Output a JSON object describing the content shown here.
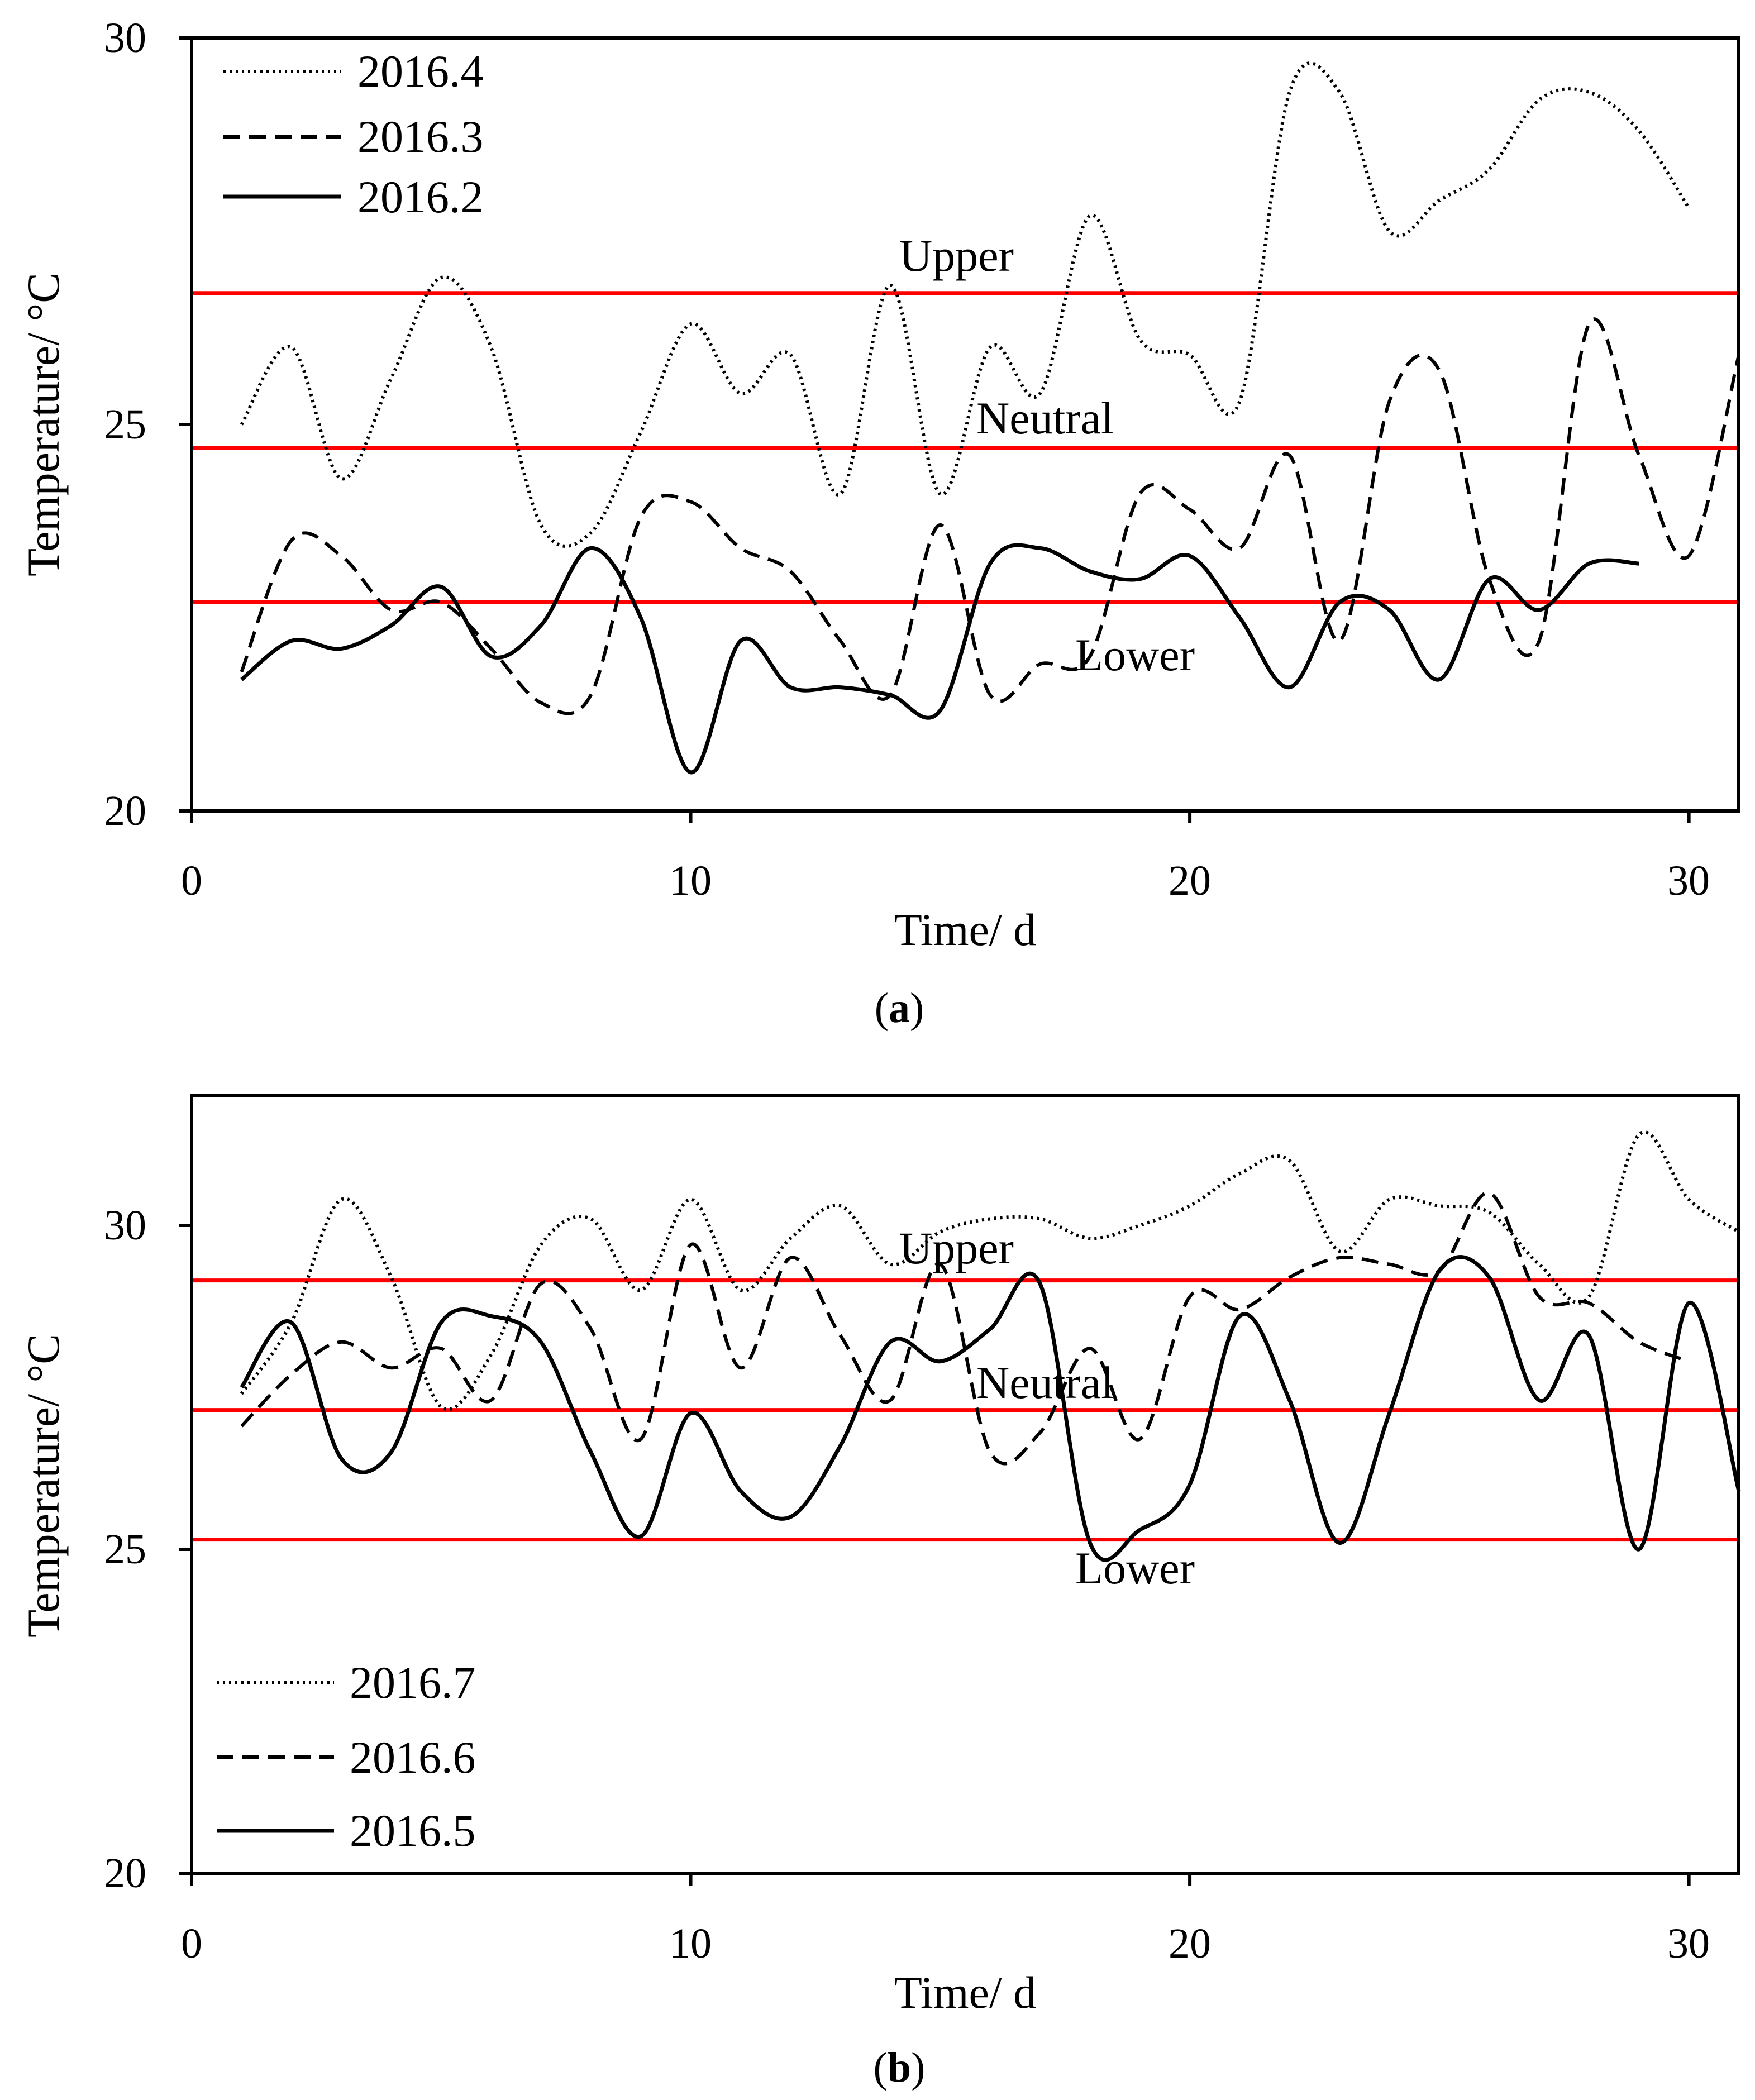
{
  "colors": {
    "line": "#000000",
    "comfort": "#ff0000",
    "background": "#ffffff"
  },
  "chart_data": [
    {
      "panel_id": "a",
      "caption": {
        "open": "(",
        "letter": "a",
        "close": ")"
      },
      "type": "line",
      "xlabel": "Time/ d",
      "ylabel": "Temperature/ °C",
      "xlim": [
        0,
        31
      ],
      "ylim": [
        20,
        30
      ],
      "xticks": [
        0,
        10,
        20,
        30
      ],
      "yticks": [
        20,
        25,
        30
      ],
      "legend_position": "top-left",
      "comfort_lines": [
        {
          "name": "Upper",
          "value": 26.7
        },
        {
          "name": "Neutral",
          "value": 24.7
        },
        {
          "name": "Lower",
          "value": 22.7
        }
      ],
      "series": [
        {
          "name": "2016.4",
          "style": "dotted",
          "x": [
            1,
            2,
            3,
            4,
            5,
            6,
            7,
            8,
            9,
            10,
            11,
            12,
            13,
            14,
            15,
            16,
            17,
            18,
            19,
            20,
            21,
            22,
            23,
            24,
            25,
            26,
            27,
            28,
            29,
            30
          ],
          "values": [
            25.0,
            26.0,
            24.3,
            25.6,
            26.9,
            26.0,
            23.7,
            23.6,
            24.9,
            26.3,
            25.4,
            25.9,
            24.1,
            26.8,
            24.1,
            26.0,
            25.4,
            27.7,
            26.1,
            25.9,
            25.3,
            29.3,
            29.3,
            27.5,
            27.9,
            28.3,
            29.2,
            29.3,
            28.8,
            27.8
          ]
        },
        {
          "name": "2016.3",
          "style": "dashed",
          "x": [
            1,
            2,
            3,
            4,
            5,
            6,
            7,
            8,
            9,
            10,
            11,
            12,
            13,
            14,
            15,
            16,
            17,
            18,
            19,
            20,
            21,
            22,
            23,
            24,
            25,
            26,
            27,
            28,
            29,
            30,
            31
          ],
          "values": [
            21.8,
            23.5,
            23.3,
            22.6,
            22.7,
            22.1,
            21.4,
            21.5,
            23.8,
            24.0,
            23.4,
            23.1,
            22.2,
            21.5,
            23.7,
            21.5,
            21.9,
            22.0,
            24.1,
            23.9,
            23.4,
            24.6,
            22.2,
            25.3,
            25.7,
            23.0,
            22.2,
            26.3,
            24.6,
            23.3,
            25.9
          ]
        },
        {
          "name": "2016.2",
          "style": "solid",
          "x": [
            1,
            2,
            3,
            4,
            5,
            6,
            7,
            8,
            9,
            10,
            11,
            12,
            13,
            14,
            15,
            16,
            17,
            18,
            19,
            20,
            21,
            22,
            23,
            24,
            25,
            26,
            27,
            28,
            29
          ],
          "values": [
            21.7,
            22.2,
            22.1,
            22.4,
            22.9,
            22.0,
            22.4,
            23.4,
            22.5,
            20.5,
            22.2,
            21.6,
            21.6,
            21.5,
            21.3,
            23.2,
            23.4,
            23.1,
            23.0,
            23.3,
            22.5,
            21.6,
            22.7,
            22.6,
            21.7,
            23.0,
            22.6,
            23.2,
            23.2
          ]
        }
      ]
    },
    {
      "panel_id": "b",
      "caption": {
        "open": "(",
        "letter": "b",
        "close": ")"
      },
      "type": "line",
      "xlabel": "Time/ d",
      "ylabel": "Temperature/ °C",
      "xlim": [
        0,
        31
      ],
      "ylim": [
        20,
        32
      ],
      "xticks": [
        0,
        10,
        20,
        30
      ],
      "yticks": [
        20,
        25,
        30
      ],
      "legend_position": "bottom-left",
      "comfort_lines": [
        {
          "name": "Upper",
          "value": 29.15
        },
        {
          "name": "Neutral",
          "value": 27.15
        },
        {
          "name": "Lower",
          "value": 25.15
        }
      ],
      "series": [
        {
          "name": "2016.7",
          "style": "dotted",
          "x": [
            1,
            2,
            3,
            4,
            5,
            6,
            7,
            8,
            9,
            10,
            11,
            12,
            13,
            14,
            15,
            16,
            17,
            18,
            19,
            20,
            21,
            22,
            23,
            24,
            25,
            26,
            27,
            28,
            29,
            30,
            31
          ],
          "values": [
            27.4,
            28.5,
            30.4,
            29.2,
            27.2,
            28.0,
            29.7,
            30.1,
            29.0,
            30.4,
            29.0,
            29.8,
            30.3,
            29.4,
            29.9,
            30.1,
            30.1,
            29.8,
            30.0,
            30.3,
            30.8,
            31.0,
            29.6,
            30.4,
            30.3,
            30.2,
            29.4,
            28.9,
            31.4,
            30.4,
            29.9
          ]
        },
        {
          "name": "2016.6",
          "style": "dashed",
          "x": [
            1,
            2,
            3,
            4,
            5,
            6,
            7,
            8,
            9,
            10,
            11,
            12,
            13,
            14,
            15,
            16,
            17,
            18,
            19,
            20,
            21,
            22,
            23,
            24,
            25,
            26,
            27,
            28,
            29,
            30
          ],
          "values": [
            26.9,
            27.7,
            28.2,
            27.8,
            28.1,
            27.3,
            29.1,
            28.4,
            26.7,
            29.7,
            27.8,
            29.5,
            28.3,
            27.3,
            29.4,
            26.5,
            26.8,
            28.1,
            26.7,
            28.9,
            28.7,
            29.2,
            29.5,
            29.4,
            29.3,
            30.5,
            28.9,
            28.8,
            28.2,
            27.9
          ]
        },
        {
          "name": "2016.5",
          "style": "solid",
          "x": [
            1,
            2,
            3,
            4,
            5,
            6,
            7,
            8,
            9,
            10,
            11,
            12,
            13,
            14,
            15,
            16,
            17,
            18,
            19,
            20,
            21,
            22,
            23,
            24,
            25,
            26,
            27,
            28,
            29,
            30,
            31
          ],
          "values": [
            27.5,
            28.5,
            26.4,
            26.5,
            28.5,
            28.6,
            28.2,
            26.5,
            25.2,
            27.1,
            25.9,
            25.5,
            26.6,
            28.2,
            27.9,
            28.4,
            29.1,
            25.1,
            25.3,
            26.0,
            28.6,
            27.3,
            25.1,
            27.1,
            29.3,
            29.2,
            27.3,
            28.3,
            25.0,
            28.8,
            25.9
          ]
        }
      ]
    }
  ]
}
